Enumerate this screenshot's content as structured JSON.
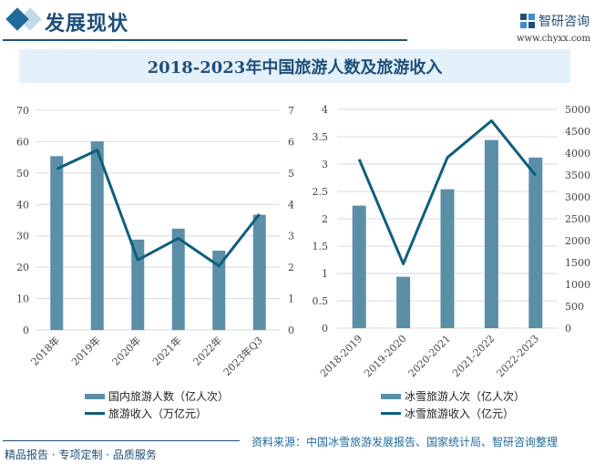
{
  "header": {
    "section_title": "发展现状",
    "logo_text": "智研咨询",
    "logo_url": "www.chyxx.com"
  },
  "title": "2018-2023年中国旅游人数及旅游收入",
  "colors": {
    "bar": "#5b8fa8",
    "line": "#0f5e7e",
    "accent": "#1f4e79"
  },
  "chart_data": [
    {
      "type": "bar+line",
      "categories": [
        "2018年",
        "2019年",
        "2020年",
        "2021年",
        "2022年",
        "2023年Q3"
      ],
      "series": [
        {
          "name": "国内旅游人数（亿人次）",
          "type": "bar",
          "axis": "left",
          "values": [
            55.4,
            60.1,
            28.8,
            32.3,
            25.3,
            36.7
          ]
        },
        {
          "name": "旅游收入（万亿元）",
          "type": "line",
          "axis": "right",
          "values": [
            5.13,
            5.73,
            2.23,
            2.92,
            2.04,
            3.69
          ]
        }
      ],
      "ylim_left": [
        0,
        70
      ],
      "yticks_left": [
        "0",
        "10",
        "20",
        "30",
        "40",
        "50",
        "60",
        "70"
      ],
      "ylim_right": [
        0,
        7
      ],
      "yticks_right": [
        "0",
        "1",
        "2",
        "3",
        "4",
        "5",
        "6",
        "7"
      ],
      "grid": true,
      "legend": "bottom"
    },
    {
      "type": "bar+line",
      "categories": [
        "2018-2019",
        "2019-2020",
        "2020-2021",
        "2021-2022",
        "2022-2023"
      ],
      "series": [
        {
          "name": "冰雪旅游人次（亿人次）",
          "type": "bar",
          "axis": "left",
          "values": [
            2.24,
            0.94,
            2.54,
            3.44,
            3.12
          ]
        },
        {
          "name": "冰雪旅游收入（亿元）",
          "type": "line",
          "axis": "right",
          "values": [
            3860,
            1470,
            3900,
            4740,
            3490
          ]
        }
      ],
      "ylim_left": [
        0,
        4
      ],
      "yticks_left": [
        "0",
        "0.5",
        "1",
        "1.5",
        "2",
        "2.5",
        "3",
        "3.5",
        "4"
      ],
      "ylim_right": [
        0,
        5000
      ],
      "yticks_right": [
        "0",
        "500",
        "1000",
        "1500",
        "2000",
        "2500",
        "3000",
        "3500",
        "4000",
        "4500",
        "5000"
      ],
      "grid": true,
      "legend": "bottom"
    }
  ],
  "footer": {
    "slogan": "精品报告 · 专项定制 · 品质服务",
    "source": "资料来源：中国冰雪旅游发展报告、国家统计局、智研咨询整理"
  }
}
